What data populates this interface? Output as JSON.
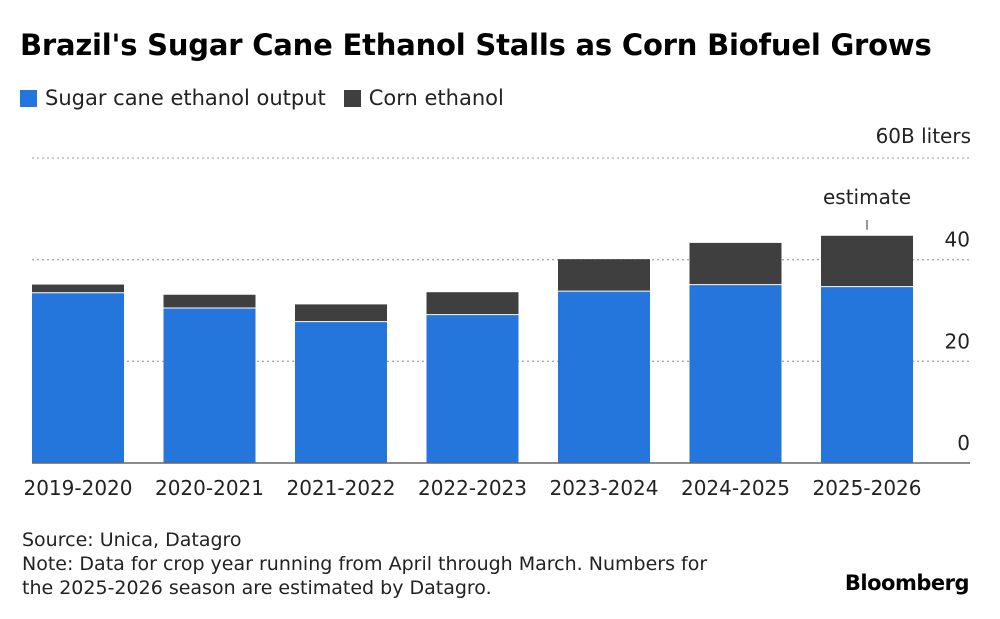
{
  "header": {
    "title": "Brazil's Sugar Cane Ethanol Stalls as Corn Biofuel Grows"
  },
  "legend": [
    {
      "label": "Sugar cane ethanol output",
      "color": "#2475dc"
    },
    {
      "label": "Corn ethanol",
      "color": "#3f3f3f"
    }
  ],
  "chart_data": {
    "type": "bar",
    "stacked": true,
    "categories": [
      "2019-2020",
      "2020-2021",
      "2021-2022",
      "2022-2023",
      "2023-2024",
      "2024-2025",
      "2025-2026"
    ],
    "series": [
      {
        "name": "Sugar cane ethanol output",
        "color": "#2475dc",
        "values": [
          33.5,
          30.5,
          27.8,
          29.2,
          33.8,
          35.1,
          34.7
        ]
      },
      {
        "name": "Corn ethanol",
        "color": "#3f3f3f",
        "values": [
          1.6,
          2.6,
          3.4,
          4.4,
          6.3,
          8.2,
          10.0
        ]
      }
    ],
    "ylim": [
      0,
      60
    ],
    "yticks": [
      {
        "value": 0,
        "label": "0"
      },
      {
        "value": 20,
        "label": "20"
      },
      {
        "value": 40,
        "label": "40"
      },
      {
        "value": 60,
        "label": "60B liters"
      }
    ],
    "grid": true,
    "legend_position": "top-left",
    "annotations": [
      {
        "category": "2025-2026",
        "text": "estimate"
      }
    ]
  },
  "footer": {
    "source": "Source: Unica, Datagro",
    "note_line1": "Note: Data for crop year running from April through March. Numbers for",
    "note_line2": "the 2025-2026 season are estimated by Datagro.",
    "brand": "Bloomberg"
  }
}
